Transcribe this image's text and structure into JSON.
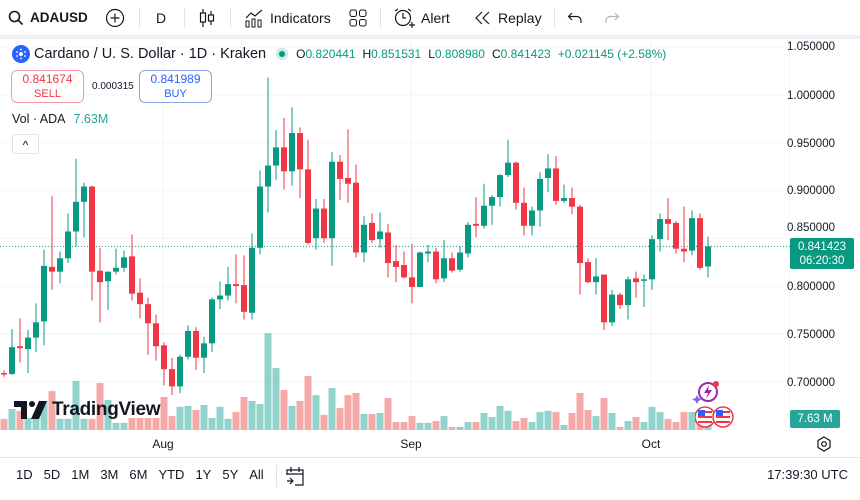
{
  "toolbar": {
    "symbol": "ADAUSD",
    "interval": "D",
    "indicators_label": "Indicators",
    "alert_label": "Alert",
    "replay_label": "Replay",
    "icons": [
      "search-icon",
      "plus-circle-icon",
      "candles-icon",
      "indicators-icon",
      "layout-grid-icon",
      "alarm-clock-icon",
      "replay-icon",
      "undo-icon",
      "redo-icon"
    ]
  },
  "legend": {
    "title": "Cardano / U. S. Dollar · 1D · Kraken",
    "o_key": "O",
    "o": "0.820441",
    "h_key": "H",
    "h": "0.851531",
    "l_key": "L",
    "l": "0.808980",
    "c_key": "C",
    "c": "0.841423",
    "change": "+0.021145 (+2.58%)"
  },
  "trade": {
    "sell_price": "0.841674",
    "sell_label": "SELL",
    "spread": "0.000315",
    "buy_price": "0.841989",
    "buy_label": "BUY"
  },
  "volume_legend": {
    "label": "Vol · ADA",
    "value": "7.63M"
  },
  "collapse_glyph": "^",
  "price_axis": {
    "ticks": [
      "1.050000",
      "1.000000",
      "0.950000",
      "0.900000",
      "0.850000",
      "0.800000",
      "0.750000",
      "0.700000"
    ],
    "last_price": "0.841423",
    "countdown": "06:20:30",
    "volume_label": "7.63 M"
  },
  "time_axis": {
    "ticks": [
      "Aug",
      "Sep",
      "Oct"
    ]
  },
  "bottom_bar": {
    "ranges": [
      "1D",
      "5D",
      "1M",
      "3M",
      "6M",
      "YTD",
      "1Y",
      "5Y",
      "All"
    ],
    "clock": "17:39:30 UTC"
  },
  "watermark": "TradingView",
  "colors": {
    "up": "#089981",
    "down": "#f23645",
    "vol_up": "#92d2cc",
    "vol_down": "#f7a9a7",
    "buy": "#2962ff"
  },
  "chart_data": {
    "type": "candlestick",
    "ylim": [
      0.68,
      1.05
    ],
    "volume_unit": "M",
    "candles": [
      {
        "d": "Jul 12",
        "o": 0.709,
        "h": 0.712,
        "l": 0.705,
        "c": 0.708,
        "v": 4.7
      },
      {
        "d": "Jul 13",
        "o": 0.708,
        "h": 0.755,
        "l": 0.707,
        "c": 0.736,
        "v": 8.9
      },
      {
        "d": "Jul 14",
        "o": 0.737,
        "h": 0.766,
        "l": 0.72,
        "c": 0.735,
        "v": 8.1
      },
      {
        "d": "Jul 15",
        "o": 0.734,
        "h": 0.754,
        "l": 0.709,
        "c": 0.746,
        "v": 5.1
      },
      {
        "d": "Jul 16",
        "o": 0.746,
        "h": 0.782,
        "l": 0.731,
        "c": 0.762,
        "v": 5.1
      },
      {
        "d": "Jul 17",
        "o": 0.763,
        "h": 0.838,
        "l": 0.738,
        "c": 0.821,
        "v": 12.3
      },
      {
        "d": "Jul 18",
        "o": 0.82,
        "h": 0.894,
        "l": 0.796,
        "c": 0.815,
        "v": 16.5
      },
      {
        "d": "Jul 19",
        "o": 0.815,
        "h": 0.836,
        "l": 0.803,
        "c": 0.829,
        "v": 4.7
      },
      {
        "d": "Jul 20",
        "o": 0.829,
        "h": 0.876,
        "l": 0.824,
        "c": 0.857,
        "v": 4.7
      },
      {
        "d": "Jul 21",
        "o": 0.857,
        "h": 0.933,
        "l": 0.841,
        "c": 0.888,
        "v": 20.8
      },
      {
        "d": "Jul 22",
        "o": 0.888,
        "h": 0.908,
        "l": 0.851,
        "c": 0.904,
        "v": 4.7
      },
      {
        "d": "Jul 23",
        "o": 0.904,
        "h": 0.905,
        "l": 0.785,
        "c": 0.815,
        "v": 4.7
      },
      {
        "d": "Jul 24",
        "o": 0.816,
        "h": 0.84,
        "l": 0.762,
        "c": 0.804,
        "v": 19.9
      },
      {
        "d": "Jul 25",
        "o": 0.805,
        "h": 0.815,
        "l": 0.775,
        "c": 0.815,
        "v": 12.7
      },
      {
        "d": "Jul 26",
        "o": 0.815,
        "h": 0.839,
        "l": 0.812,
        "c": 0.819,
        "v": 3.0
      },
      {
        "d": "Jul 27",
        "o": 0.819,
        "h": 0.837,
        "l": 0.815,
        "c": 0.83,
        "v": 3.0
      },
      {
        "d": "Jul 28",
        "o": 0.831,
        "h": 0.854,
        "l": 0.785,
        "c": 0.792,
        "v": 5.1
      },
      {
        "d": "Jul 29",
        "o": 0.793,
        "h": 0.808,
        "l": 0.766,
        "c": 0.781,
        "v": 5.1
      },
      {
        "d": "Jul 30",
        "o": 0.781,
        "h": 0.788,
        "l": 0.728,
        "c": 0.761,
        "v": 5.1
      },
      {
        "d": "Jul 31",
        "o": 0.761,
        "h": 0.77,
        "l": 0.722,
        "c": 0.737,
        "v": 5.1
      },
      {
        "d": "Aug 1",
        "o": 0.738,
        "h": 0.741,
        "l": 0.696,
        "c": 0.713,
        "v": 14.0
      },
      {
        "d": "Aug 2",
        "o": 0.713,
        "h": 0.725,
        "l": 0.686,
        "c": 0.695,
        "v": 5.9
      },
      {
        "d": "Aug 3",
        "o": 0.695,
        "h": 0.728,
        "l": 0.688,
        "c": 0.726,
        "v": 9.8
      },
      {
        "d": "Aug 4",
        "o": 0.726,
        "h": 0.759,
        "l": 0.723,
        "c": 0.753,
        "v": 10.2
      },
      {
        "d": "Aug 5",
        "o": 0.753,
        "h": 0.757,
        "l": 0.712,
        "c": 0.725,
        "v": 8.5
      },
      {
        "d": "Aug 6",
        "o": 0.725,
        "h": 0.747,
        "l": 0.709,
        "c": 0.74,
        "v": 10.6
      },
      {
        "d": "Aug 7",
        "o": 0.74,
        "h": 0.788,
        "l": 0.731,
        "c": 0.786,
        "v": 5.1
      },
      {
        "d": "Aug 8",
        "o": 0.786,
        "h": 0.805,
        "l": 0.776,
        "c": 0.79,
        "v": 9.8
      },
      {
        "d": "Aug 9",
        "o": 0.79,
        "h": 0.82,
        "l": 0.785,
        "c": 0.802,
        "v": 4.7
      },
      {
        "d": "Aug 10",
        "o": 0.802,
        "h": 0.833,
        "l": 0.782,
        "c": 0.8,
        "v": 7.6
      },
      {
        "d": "Aug 11",
        "o": 0.801,
        "h": 0.832,
        "l": 0.765,
        "c": 0.773,
        "v": 14.0
      },
      {
        "d": "Aug 12",
        "o": 0.772,
        "h": 0.855,
        "l": 0.765,
        "c": 0.84,
        "v": 12.3
      },
      {
        "d": "Aug 13",
        "o": 0.84,
        "h": 0.921,
        "l": 0.833,
        "c": 0.904,
        "v": 11.0
      },
      {
        "d": "Aug 14",
        "o": 0.904,
        "h": 1.018,
        "l": 0.877,
        "c": 0.926,
        "v": 41.1
      },
      {
        "d": "Aug 15",
        "o": 0.926,
        "h": 0.963,
        "l": 0.911,
        "c": 0.945,
        "v": 26.3
      },
      {
        "d": "Aug 16",
        "o": 0.945,
        "h": 0.976,
        "l": 0.901,
        "c": 0.92,
        "v": 17.0
      },
      {
        "d": "Aug 17",
        "o": 0.92,
        "h": 0.987,
        "l": 0.905,
        "c": 0.96,
        "v": 10.2
      },
      {
        "d": "Aug 18",
        "o": 0.96,
        "h": 0.966,
        "l": 0.892,
        "c": 0.922,
        "v": 12.3
      },
      {
        "d": "Aug 19",
        "o": 0.922,
        "h": 0.953,
        "l": 0.843,
        "c": 0.845,
        "v": 22.9
      },
      {
        "d": "Aug 20",
        "o": 0.85,
        "h": 0.891,
        "l": 0.838,
        "c": 0.881,
        "v": 14.8
      },
      {
        "d": "Aug 21",
        "o": 0.881,
        "h": 0.891,
        "l": 0.845,
        "c": 0.85,
        "v": 6.4
      },
      {
        "d": "Aug 22",
        "o": 0.85,
        "h": 0.94,
        "l": 0.821,
        "c": 0.93,
        "v": 17.8
      },
      {
        "d": "Aug 23",
        "o": 0.93,
        "h": 0.937,
        "l": 0.89,
        "c": 0.912,
        "v": 9.3
      },
      {
        "d": "Aug 24",
        "o": 0.913,
        "h": 0.964,
        "l": 0.887,
        "c": 0.907,
        "v": 14.8
      },
      {
        "d": "Aug 25",
        "o": 0.908,
        "h": 0.927,
        "l": 0.83,
        "c": 0.835,
        "v": 15.7
      },
      {
        "d": "Aug 26",
        "o": 0.835,
        "h": 0.873,
        "l": 0.825,
        "c": 0.864,
        "v": 6.8
      },
      {
        "d": "Aug 27",
        "o": 0.866,
        "h": 0.876,
        "l": 0.845,
        "c": 0.848,
        "v": 6.8
      },
      {
        "d": "Aug 28",
        "o": 0.849,
        "h": 0.877,
        "l": 0.84,
        "c": 0.857,
        "v": 7.2
      },
      {
        "d": "Aug 29",
        "o": 0.856,
        "h": 0.865,
        "l": 0.809,
        "c": 0.824,
        "v": 13.6
      },
      {
        "d": "Aug 30",
        "o": 0.826,
        "h": 0.843,
        "l": 0.804,
        "c": 0.82,
        "v": 3.4
      },
      {
        "d": "Aug 31",
        "o": 0.822,
        "h": 0.836,
        "l": 0.808,
        "c": 0.809,
        "v": 3.4
      },
      {
        "d": "Sep 1",
        "o": 0.809,
        "h": 0.844,
        "l": 0.782,
        "c": 0.799,
        "v": 5.9
      },
      {
        "d": "Sep 2",
        "o": 0.799,
        "h": 0.836,
        "l": 0.799,
        "c": 0.835,
        "v": 3.0
      },
      {
        "d": "Sep 3",
        "o": 0.834,
        "h": 0.843,
        "l": 0.825,
        "c": 0.836,
        "v": 3.0
      },
      {
        "d": "Sep 4",
        "o": 0.836,
        "h": 0.84,
        "l": 0.803,
        "c": 0.807,
        "v": 3.8
      },
      {
        "d": "Sep 5",
        "o": 0.808,
        "h": 0.848,
        "l": 0.804,
        "c": 0.829,
        "v": 5.9
      },
      {
        "d": "Sep 6",
        "o": 0.829,
        "h": 0.835,
        "l": 0.814,
        "c": 0.816,
        "v": 1.3
      },
      {
        "d": "Sep 7",
        "o": 0.817,
        "h": 0.841,
        "l": 0.815,
        "c": 0.835,
        "v": 1.3
      },
      {
        "d": "Sep 8",
        "o": 0.834,
        "h": 0.867,
        "l": 0.83,
        "c": 0.864,
        "v": 3.4
      },
      {
        "d": "Sep 9",
        "o": 0.865,
        "h": 0.893,
        "l": 0.851,
        "c": 0.863,
        "v": 3.4
      },
      {
        "d": "Sep 10",
        "o": 0.863,
        "h": 0.907,
        "l": 0.86,
        "c": 0.884,
        "v": 7.2
      },
      {
        "d": "Sep 11",
        "o": 0.884,
        "h": 0.895,
        "l": 0.864,
        "c": 0.893,
        "v": 5.5
      },
      {
        "d": "Sep 12",
        "o": 0.893,
        "h": 0.917,
        "l": 0.883,
        "c": 0.916,
        "v": 10.2
      },
      {
        "d": "Sep 13",
        "o": 0.916,
        "h": 0.953,
        "l": 0.914,
        "c": 0.929,
        "v": 8.1
      },
      {
        "d": "Sep 14",
        "o": 0.929,
        "h": 0.93,
        "l": 0.88,
        "c": 0.887,
        "v": 3.8
      },
      {
        "d": "Sep 15",
        "o": 0.887,
        "h": 0.903,
        "l": 0.853,
        "c": 0.863,
        "v": 5.1
      },
      {
        "d": "Sep 16",
        "o": 0.863,
        "h": 0.883,
        "l": 0.853,
        "c": 0.879,
        "v": 3.4
      },
      {
        "d": "Sep 17",
        "o": 0.879,
        "h": 0.919,
        "l": 0.862,
        "c": 0.912,
        "v": 7.6
      },
      {
        "d": "Sep 18",
        "o": 0.913,
        "h": 0.938,
        "l": 0.898,
        "c": 0.923,
        "v": 8.1
      },
      {
        "d": "Sep 19",
        "o": 0.923,
        "h": 0.936,
        "l": 0.885,
        "c": 0.889,
        "v": 7.6
      },
      {
        "d": "Sep 20",
        "o": 0.889,
        "h": 0.906,
        "l": 0.887,
        "c": 0.892,
        "v": 2.1
      },
      {
        "d": "Sep 21",
        "o": 0.892,
        "h": 0.903,
        "l": 0.875,
        "c": 0.883,
        "v": 7.2
      },
      {
        "d": "Sep 22",
        "o": 0.883,
        "h": 0.885,
        "l": 0.791,
        "c": 0.824,
        "v": 15.7
      },
      {
        "d": "Sep 23",
        "o": 0.825,
        "h": 0.829,
        "l": 0.803,
        "c": 0.804,
        "v": 8.5
      },
      {
        "d": "Sep 24",
        "o": 0.804,
        "h": 0.829,
        "l": 0.791,
        "c": 0.81,
        "v": 5.9
      },
      {
        "d": "Sep 25",
        "o": 0.812,
        "h": 0.812,
        "l": 0.754,
        "c": 0.762,
        "v": 13.6
      },
      {
        "d": "Sep 26",
        "o": 0.762,
        "h": 0.796,
        "l": 0.758,
        "c": 0.791,
        "v": 7.2
      },
      {
        "d": "Sep 27",
        "o": 0.791,
        "h": 0.793,
        "l": 0.776,
        "c": 0.78,
        "v": 1.3
      },
      {
        "d": "Sep 28",
        "o": 0.78,
        "h": 0.81,
        "l": 0.765,
        "c": 0.807,
        "v": 3.8
      },
      {
        "d": "Sep 29",
        "o": 0.808,
        "h": 0.815,
        "l": 0.788,
        "c": 0.804,
        "v": 5.5
      },
      {
        "d": "Sep 30",
        "o": 0.806,
        "h": 0.812,
        "l": 0.778,
        "c": 0.807,
        "v": 3.4
      },
      {
        "d": "Oct 1",
        "o": 0.807,
        "h": 0.853,
        "l": 0.796,
        "c": 0.849,
        "v": 9.8
      },
      {
        "d": "Oct 2",
        "o": 0.849,
        "h": 0.876,
        "l": 0.836,
        "c": 0.87,
        "v": 7.6
      },
      {
        "d": "Oct 3",
        "o": 0.87,
        "h": 0.892,
        "l": 0.848,
        "c": 0.865,
        "v": 4.7
      },
      {
        "d": "Oct 4",
        "o": 0.866,
        "h": 0.868,
        "l": 0.834,
        "c": 0.839,
        "v": 3.4
      },
      {
        "d": "Oct 5",
        "o": 0.839,
        "h": 0.883,
        "l": 0.825,
        "c": 0.836,
        "v": 7.6
      },
      {
        "d": "Oct 6",
        "o": 0.837,
        "h": 0.879,
        "l": 0.832,
        "c": 0.871,
        "v": 7.6
      },
      {
        "d": "Oct 7",
        "o": 0.871,
        "h": 0.876,
        "l": 0.817,
        "c": 0.819,
        "v": 7.6
      },
      {
        "d": "Oct 8",
        "o": 0.820441,
        "h": 0.851531,
        "l": 0.80898,
        "c": 0.841423,
        "v": 7.63
      }
    ]
  }
}
